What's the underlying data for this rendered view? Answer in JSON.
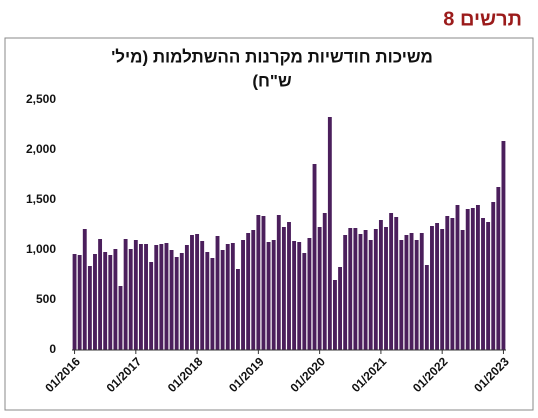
{
  "header": "תרשים 8",
  "chart_data": {
    "type": "bar",
    "title": [
      "משיכות חודשיות מקרנות ההשתלמות (מיל'",
      "ש\"ח)"
    ],
    "categories": [
      "01/2016",
      null,
      null,
      null,
      null,
      null,
      null,
      null,
      null,
      null,
      null,
      null,
      "01/2017",
      null,
      null,
      null,
      null,
      null,
      null,
      null,
      null,
      null,
      null,
      null,
      "01/2018",
      null,
      null,
      null,
      null,
      null,
      null,
      null,
      null,
      null,
      null,
      null,
      "01/2019",
      null,
      null,
      null,
      null,
      null,
      null,
      null,
      null,
      null,
      null,
      null,
      "01/2020",
      null,
      null,
      null,
      null,
      null,
      null,
      null,
      null,
      null,
      null,
      null,
      "01/2021",
      null,
      null,
      null,
      null,
      null,
      null,
      null,
      null,
      null,
      null,
      null,
      "01/2022",
      null,
      null,
      null,
      null,
      null,
      null,
      null,
      null,
      null,
      null,
      null,
      "01/2023"
    ],
    "values": [
      960,
      950,
      1210,
      840,
      960,
      1110,
      980,
      950,
      1010,
      640,
      1110,
      1010,
      1100,
      1060,
      1060,
      880,
      1050,
      1060,
      1070,
      1000,
      930,
      970,
      1050,
      1150,
      1160,
      1090,
      980,
      920,
      1140,
      1000,
      1060,
      1070,
      810,
      1100,
      1170,
      1200,
      1350,
      1340,
      1080,
      1100,
      1350,
      1230,
      1280,
      1090,
      1080,
      970,
      1120,
      1860,
      1230,
      1370,
      2330,
      700,
      830,
      1150,
      1220,
      1220,
      1160,
      1200,
      1100,
      1210,
      1300,
      1230,
      1370,
      1330,
      1100,
      1150,
      1170,
      1100,
      1170,
      850,
      1240,
      1270,
      1210,
      1340,
      1320,
      1450,
      1200,
      1410,
      1420,
      1450,
      1320,
      1280,
      1480,
      1630,
      2090
    ],
    "color": "#4b1f5c",
    "ylim": [
      0,
      2500
    ],
    "yticks": [
      0,
      500,
      {
        "value": 1000,
        "label": "1,000"
      },
      {
        "value": 1500,
        "label": "1,500"
      },
      {
        "value": 2000,
        "label": "2,000"
      },
      {
        "value": 2500,
        "label": "2,500"
      }
    ],
    "grid": false
  }
}
